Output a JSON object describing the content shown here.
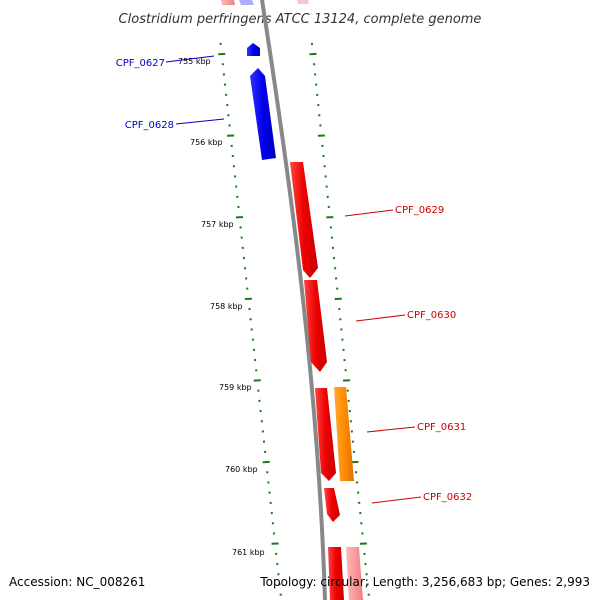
{
  "title": "Clostridium perfringens ATCC 13124, complete genome",
  "accession": "Accession: NC_008261",
  "summary": "Topology: circular; Length: 3,256,683 bp; Genes: 2,993",
  "scale_labels": [
    "755 kbp",
    "756 kbp",
    "757 kbp",
    "758 kbp",
    "759 kbp",
    "760 kbp",
    "761 kbp"
  ],
  "genes": [
    {
      "id": "CPF_0627",
      "label": "CPF_0627",
      "strand": "reverse",
      "color": "#0000ee"
    },
    {
      "id": "CPF_0628",
      "label": "CPF_0628",
      "strand": "reverse",
      "color": "#0000ee"
    },
    {
      "id": "CPF_0629",
      "label": "CPF_0629",
      "strand": "forward",
      "color": "#ee0000"
    },
    {
      "id": "CPF_0630",
      "label": "CPF_0630",
      "strand": "forward",
      "color": "#ee0000"
    },
    {
      "id": "CPF_0631",
      "label": "CPF_0631",
      "strand": "forward",
      "color": "#ee0000"
    },
    {
      "id": "CPF_0632",
      "label": "CPF_0632",
      "strand": "forward",
      "color": "#ee0000"
    }
  ],
  "colors": {
    "reverse_gene": "#0000ee",
    "forward_gene": "#ee0000",
    "orange_feature": "#ff8c00",
    "backbone": "#888888",
    "ticks": "#1a7a1a",
    "faded_gene": "#f4a0a0"
  }
}
